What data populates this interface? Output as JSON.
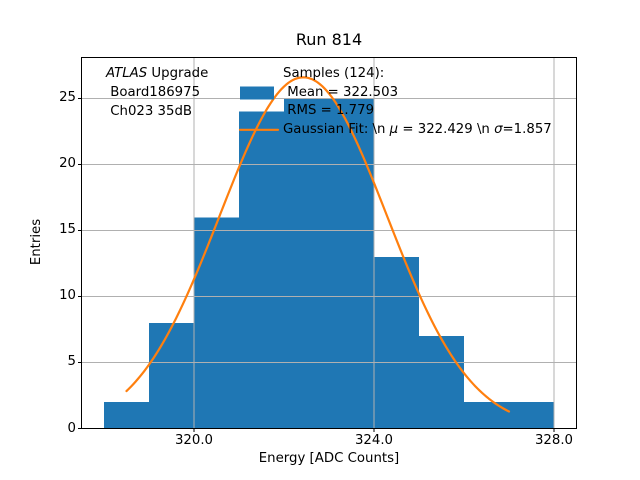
{
  "chart_data": {
    "type": "bar",
    "subtype": "histogram_with_gaussian_fit",
    "title": "Run 814",
    "xlabel": "Energy [ADC Counts]",
    "ylabel": "Entries",
    "bin_edges": [
      318,
      319,
      320,
      321,
      322,
      323,
      324,
      325,
      326,
      327,
      328
    ],
    "counts": [
      2,
      8,
      16,
      24,
      25,
      25,
      13,
      7,
      2,
      2
    ],
    "xlim": [
      317.5,
      328.5
    ],
    "ylim": [
      0,
      28.1
    ],
    "xticks": {
      "values": [
        320,
        324,
        328
      ],
      "labels": [
        "320.0",
        "324.0",
        "328.0"
      ]
    },
    "yticks": {
      "values": [
        0,
        5,
        10,
        15,
        20,
        25
      ],
      "labels": [
        "0",
        "5",
        "10",
        "15",
        "20",
        "25"
      ]
    },
    "grid": true,
    "legend_position": "upper center",
    "colors": {
      "bars": "#1f77b4",
      "fit_line": "#ff7f0e",
      "grid": "#b0b0b0",
      "axes": "#000000",
      "text": "#000000",
      "background": "#ffffff"
    },
    "fit": {
      "type": "gaussian",
      "mu": 322.429,
      "sigma": 1.857,
      "amplitude": 26.6,
      "x_start": 318.5,
      "x_end": 327.0
    },
    "annotation": {
      "lines": [
        [
          {
            "text": "ATLAS",
            "italic": true
          },
          {
            "text": " Upgrade",
            "italic": false
          }
        ],
        [
          {
            "text": " Board186975",
            "italic": false
          }
        ],
        [
          {
            "text": " Ch023 35dB",
            "italic": false
          }
        ]
      ]
    },
    "legend": {
      "entries": [
        {
          "handle": "patch",
          "lines": [
            "Samples (124):",
            " Mean = 322.503",
            " RMS = 1.779"
          ]
        },
        {
          "handle": "line",
          "parts": [
            {
              "text": "Gaussian Fit: \\n ",
              "italic": false
            },
            {
              "text": "μ",
              "italic": true
            },
            {
              "text": " = 322.429 \\n ",
              "italic": false
            },
            {
              "text": "σ",
              "italic": true
            },
            {
              "text": "=1.857",
              "italic": false
            }
          ]
        }
      ]
    }
  }
}
